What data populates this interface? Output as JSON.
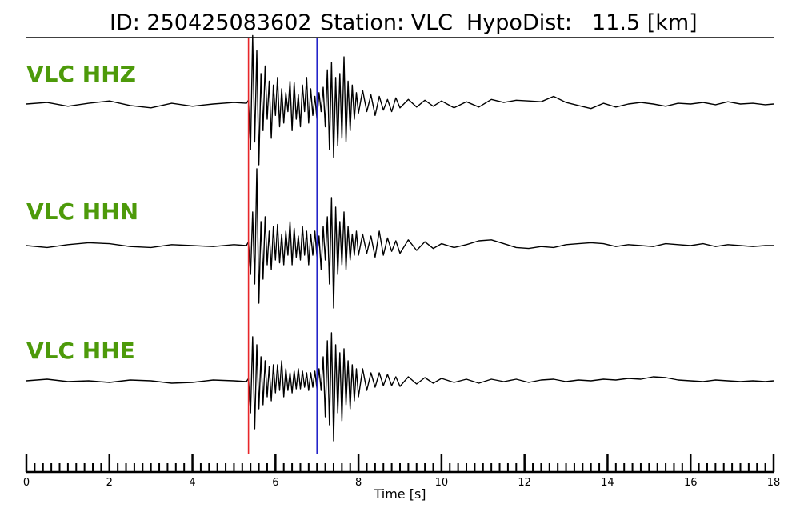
{
  "header": {
    "id_text": "ID: 250425083602",
    "station_text": "Station: VLC",
    "hypodist_label": "HypoDist:",
    "hypodist_value": "11.5 [km]"
  },
  "colors": {
    "label": "#4d9a0a",
    "trace": "#000000",
    "p_pick": "#e8262a",
    "s_pick": "#2323c8",
    "axis": "#000000"
  },
  "chart_data": {
    "type": "line",
    "xlabel": "Time [s]",
    "xlim": [
      0,
      18
    ],
    "x_tick_values": [
      0,
      2,
      4,
      6,
      8,
      10,
      12,
      14,
      16,
      18
    ],
    "x_tick_labels": [
      "0",
      "2",
      "4",
      "6",
      "8",
      "10",
      "12",
      "14",
      "16",
      "18"
    ],
    "minor_tick_step": 0.2,
    "p_pick_time": 5.35,
    "s_pick_time": 7.0,
    "series": [
      {
        "name": "VLC HHZ",
        "x": [
          0.0,
          0.5,
          1.0,
          1.5,
          2.0,
          2.5,
          3.0,
          3.5,
          4.0,
          4.5,
          5.0,
          5.3,
          5.35,
          5.4,
          5.45,
          5.5,
          5.55,
          5.6,
          5.65,
          5.7,
          5.75,
          5.8,
          5.85,
          5.9,
          5.95,
          6.0,
          6.05,
          6.1,
          6.15,
          6.2,
          6.25,
          6.3,
          6.35,
          6.4,
          6.45,
          6.5,
          6.55,
          6.6,
          6.65,
          6.7,
          6.75,
          6.8,
          6.85,
          6.9,
          6.95,
          7.0,
          7.05,
          7.1,
          7.15,
          7.2,
          7.25,
          7.3,
          7.35,
          7.4,
          7.45,
          7.5,
          7.55,
          7.6,
          7.65,
          7.7,
          7.75,
          7.8,
          7.85,
          7.9,
          7.95,
          8.0,
          8.1,
          8.2,
          8.3,
          8.4,
          8.5,
          8.6,
          8.7,
          8.8,
          8.9,
          9.0,
          9.2,
          9.4,
          9.6,
          9.8,
          10.0,
          10.3,
          10.6,
          10.9,
          11.2,
          11.5,
          11.8,
          12.1,
          12.4,
          12.7,
          13.0,
          13.3,
          13.6,
          13.9,
          14.2,
          14.5,
          14.8,
          15.1,
          15.4,
          15.7,
          16.0,
          16.3,
          16.6,
          16.9,
          17.2,
          17.5,
          17.8,
          18.0
        ],
        "y": [
          0.0,
          0.02,
          -0.03,
          0.01,
          0.04,
          -0.02,
          -0.05,
          0.01,
          -0.03,
          0.0,
          0.02,
          0.01,
          0.05,
          -0.6,
          0.9,
          -0.5,
          0.7,
          -0.8,
          0.4,
          -0.35,
          0.5,
          -0.2,
          0.3,
          -0.45,
          0.25,
          -0.15,
          0.35,
          -0.3,
          0.2,
          -0.25,
          0.15,
          -0.1,
          0.3,
          -0.35,
          0.28,
          -0.2,
          0.12,
          -0.3,
          0.25,
          -0.1,
          0.35,
          -0.25,
          0.2,
          -0.15,
          0.1,
          -0.2,
          0.15,
          -0.1,
          0.22,
          -0.3,
          0.45,
          -0.6,
          0.55,
          -0.7,
          0.35,
          -0.55,
          0.4,
          -0.45,
          0.62,
          -0.5,
          0.3,
          -0.35,
          0.25,
          -0.2,
          0.15,
          -0.12,
          0.18,
          -0.1,
          0.12,
          -0.15,
          0.1,
          -0.08,
          0.06,
          -0.1,
          0.08,
          -0.05,
          0.06,
          -0.04,
          0.05,
          -0.03,
          0.04,
          -0.05,
          0.03,
          -0.04,
          0.06,
          0.02,
          0.05,
          0.04,
          0.03,
          0.1,
          0.02,
          -0.02,
          -0.06,
          0.01,
          -0.04,
          0.0,
          0.02,
          0.0,
          -0.03,
          0.01,
          0.0,
          0.02,
          -0.01,
          0.03,
          0.0,
          0.01,
          -0.01,
          0.0
        ]
      },
      {
        "name": "VLC HHN",
        "x": [
          0.0,
          0.5,
          1.0,
          1.5,
          2.0,
          2.5,
          3.0,
          3.5,
          4.0,
          4.5,
          5.0,
          5.3,
          5.35,
          5.4,
          5.45,
          5.5,
          5.55,
          5.6,
          5.65,
          5.7,
          5.75,
          5.8,
          5.85,
          5.9,
          5.95,
          6.0,
          6.05,
          6.1,
          6.15,
          6.2,
          6.25,
          6.3,
          6.35,
          6.4,
          6.45,
          6.5,
          6.55,
          6.6,
          6.65,
          6.7,
          6.75,
          6.8,
          6.85,
          6.9,
          6.95,
          7.0,
          7.05,
          7.1,
          7.15,
          7.2,
          7.25,
          7.3,
          7.35,
          7.4,
          7.45,
          7.5,
          7.55,
          7.6,
          7.65,
          7.7,
          7.75,
          7.8,
          7.85,
          7.9,
          7.95,
          8.0,
          8.1,
          8.2,
          8.3,
          8.4,
          8.5,
          8.6,
          8.7,
          8.8,
          8.9,
          9.0,
          9.2,
          9.4,
          9.6,
          9.8,
          10.0,
          10.3,
          10.6,
          10.9,
          11.2,
          11.5,
          11.8,
          12.1,
          12.4,
          12.7,
          13.0,
          13.3,
          13.6,
          13.9,
          14.2,
          14.5,
          14.8,
          15.1,
          15.4,
          15.7,
          16.0,
          16.3,
          16.6,
          16.9,
          17.2,
          17.5,
          17.8,
          18.0
        ],
        "y": [
          0.0,
          -0.02,
          0.01,
          0.03,
          0.02,
          -0.01,
          -0.02,
          0.01,
          0.0,
          -0.01,
          0.01,
          0.0,
          0.04,
          -0.3,
          0.35,
          -0.4,
          0.8,
          -0.6,
          0.25,
          -0.35,
          0.3,
          -0.2,
          0.15,
          -0.25,
          0.2,
          -0.15,
          0.22,
          -0.18,
          0.12,
          -0.2,
          0.15,
          -0.1,
          0.25,
          -0.2,
          0.18,
          -0.12,
          0.1,
          -0.15,
          0.2,
          -0.1,
          0.15,
          -0.2,
          0.12,
          -0.1,
          0.15,
          -0.12,
          0.1,
          -0.25,
          0.2,
          -0.15,
          0.3,
          -0.4,
          0.5,
          -0.65,
          0.4,
          -0.3,
          0.25,
          -0.2,
          0.35,
          -0.25,
          0.2,
          -0.15,
          0.12,
          -0.1,
          0.15,
          -0.1,
          0.12,
          -0.08,
          0.1,
          -0.12,
          0.15,
          -0.1,
          0.08,
          -0.06,
          0.05,
          -0.08,
          0.06,
          -0.05,
          0.04,
          -0.03,
          0.02,
          -0.02,
          0.01,
          0.05,
          0.06,
          0.02,
          -0.02,
          -0.03,
          -0.01,
          -0.02,
          0.01,
          0.02,
          0.03,
          0.02,
          -0.01,
          0.01,
          0.0,
          -0.01,
          0.02,
          0.01,
          0.0,
          0.02,
          -0.01,
          0.01,
          0.0,
          -0.01,
          0.0,
          0.0
        ]
      },
      {
        "name": "VLC HHE",
        "x": [
          0.0,
          0.5,
          1.0,
          1.5,
          2.0,
          2.5,
          3.0,
          3.5,
          4.0,
          4.5,
          5.0,
          5.3,
          5.35,
          5.4,
          5.45,
          5.5,
          5.55,
          5.6,
          5.65,
          5.7,
          5.75,
          5.8,
          5.85,
          5.9,
          5.95,
          6.0,
          6.05,
          6.1,
          6.15,
          6.2,
          6.25,
          6.3,
          6.35,
          6.4,
          6.45,
          6.5,
          6.55,
          6.6,
          6.65,
          6.7,
          6.75,
          6.8,
          6.85,
          6.9,
          6.95,
          7.0,
          7.05,
          7.1,
          7.15,
          7.2,
          7.25,
          7.3,
          7.35,
          7.4,
          7.45,
          7.5,
          7.55,
          7.6,
          7.65,
          7.7,
          7.75,
          7.8,
          7.85,
          7.9,
          7.95,
          8.0,
          8.1,
          8.2,
          8.3,
          8.4,
          8.5,
          8.6,
          8.7,
          8.8,
          8.9,
          9.0,
          9.2,
          9.4,
          9.6,
          9.8,
          10.0,
          10.3,
          10.6,
          10.9,
          11.2,
          11.5,
          11.8,
          12.1,
          12.4,
          12.7,
          13.0,
          13.3,
          13.6,
          13.9,
          14.2,
          14.5,
          14.8,
          15.1,
          15.4,
          15.7,
          16.0,
          16.3,
          16.6,
          16.9,
          17.2,
          17.5,
          17.8,
          18.0
        ],
        "y": [
          0.0,
          0.02,
          -0.01,
          0.0,
          -0.02,
          0.01,
          0.0,
          -0.03,
          -0.02,
          0.01,
          0.0,
          -0.01,
          0.03,
          -0.4,
          0.55,
          -0.6,
          0.45,
          -0.35,
          0.3,
          -0.3,
          0.25,
          -0.2,
          0.18,
          -0.25,
          0.2,
          -0.15,
          0.2,
          -0.12,
          0.25,
          -0.2,
          0.15,
          -0.12,
          0.1,
          -0.15,
          0.12,
          -0.1,
          0.15,
          -0.1,
          0.12,
          -0.08,
          0.1,
          -0.12,
          0.1,
          -0.08,
          0.12,
          -0.1,
          0.15,
          -0.12,
          0.3,
          -0.45,
          0.5,
          -0.55,
          0.6,
          -0.75,
          0.45,
          -0.4,
          0.35,
          -0.5,
          0.4,
          -0.3,
          0.25,
          -0.35,
          0.2,
          -0.25,
          0.15,
          -0.2,
          0.15,
          -0.12,
          0.1,
          -0.08,
          0.1,
          -0.06,
          0.08,
          -0.06,
          0.05,
          -0.07,
          0.05,
          -0.04,
          0.04,
          -0.03,
          0.03,
          -0.02,
          0.02,
          -0.03,
          0.02,
          -0.01,
          0.02,
          -0.02,
          0.01,
          0.02,
          -0.01,
          0.01,
          0.0,
          0.02,
          0.01,
          0.03,
          0.02,
          0.05,
          0.04,
          0.01,
          0.0,
          -0.01,
          0.01,
          0.0,
          -0.01,
          0.0,
          -0.01,
          0.0
        ]
      }
    ]
  }
}
